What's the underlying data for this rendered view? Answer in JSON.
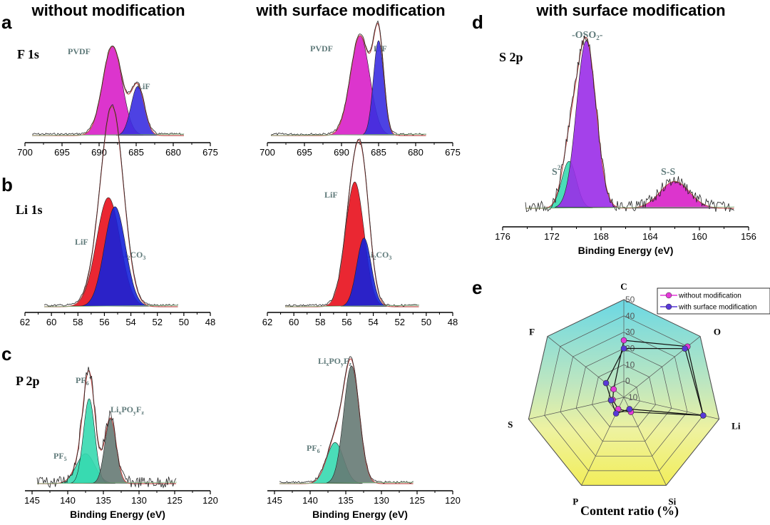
{
  "headers": {
    "left": "without modification",
    "middle": "with surface modification",
    "right": "with surface modification"
  },
  "panel_labels": {
    "a": "a",
    "b": "b",
    "c": "c",
    "d": "d",
    "e": "e"
  },
  "element_labels": {
    "f1s": "F 1s",
    "li1s": "Li 1s",
    "p2p": "P 2p",
    "s2p": "S 2p"
  },
  "colors": {
    "magenta": "#d81fc8",
    "blue": "#3a2ee0",
    "red": "#e8101c",
    "darkblue": "#1622d8",
    "teal": "#36d9b0",
    "gray": "#667a74",
    "purple": "#9a2ce8",
    "envelope": "#c0504d"
  },
  "chart_data": [
    {
      "id": "a-left",
      "type": "line",
      "title": "F 1s — without modification",
      "x_ticks": [
        "700",
        "695",
        "690",
        "685",
        "680",
        "675"
      ],
      "xlim": [
        700,
        675
      ],
      "peaks": [
        {
          "label": "PVDF",
          "center": 688.2,
          "sigma": 1.3,
          "height": 1.0,
          "color": "magenta"
        },
        {
          "label": "LiF",
          "center": 684.8,
          "sigma": 0.9,
          "height": 0.55,
          "color": "blue"
        }
      ],
      "xlabel": ""
    },
    {
      "id": "a-right",
      "type": "line",
      "title": "F 1s — with surface modification",
      "x_ticks": [
        "700",
        "695",
        "690",
        "685",
        "680",
        "675"
      ],
      "xlim": [
        700,
        675
      ],
      "peaks": [
        {
          "label": "PVDF",
          "center": 687.5,
          "sigma": 1.3,
          "height": 1.0,
          "color": "magenta"
        },
        {
          "label": "LiF",
          "center": 685.0,
          "sigma": 0.7,
          "height": 0.95,
          "color": "blue"
        }
      ],
      "xlabel": ""
    },
    {
      "id": "b-left",
      "type": "line",
      "title": "Li 1s — without modification",
      "x_ticks": [
        "62",
        "60",
        "58",
        "56",
        "54",
        "52",
        "50",
        "48"
      ],
      "xlim": [
        62,
        48
      ],
      "peaks": [
        {
          "label": "LiF",
          "center": 55.7,
          "sigma": 0.9,
          "height": 0.6,
          "color": "red"
        },
        {
          "label": "Li2CO3",
          "center": 55.2,
          "sigma": 0.8,
          "height": 0.55,
          "color": "darkblue"
        }
      ],
      "xlabel": ""
    },
    {
      "id": "b-right",
      "type": "line",
      "title": "Li 1s — with surface modification",
      "x_ticks": [
        "62",
        "60",
        "58",
        "56",
        "54",
        "52",
        "50",
        "48"
      ],
      "xlim": [
        62,
        48
      ],
      "peaks": [
        {
          "label": "LiF",
          "center": 55.4,
          "sigma": 0.7,
          "height": 1.0,
          "color": "red"
        },
        {
          "label": "Li2CO3",
          "center": 54.7,
          "sigma": 0.55,
          "height": 0.55,
          "color": "darkblue"
        }
      ],
      "xlabel": ""
    },
    {
      "id": "c-left",
      "type": "line",
      "title": "P 2p — without modification",
      "x_ticks": [
        "145",
        "140",
        "135",
        "130",
        "125",
        "120"
      ],
      "xlim": [
        146,
        120
      ],
      "peaks": [
        {
          "label": "PF5",
          "center": 137.5,
          "sigma": 1.3,
          "height": 0.3,
          "color": "teal"
        },
        {
          "label": "PF6-",
          "center": 137.0,
          "sigma": 0.8,
          "height": 0.85,
          "color": "teal"
        },
        {
          "label": "LixPOyFz",
          "center": 134.0,
          "sigma": 0.8,
          "height": 0.65,
          "color": "gray"
        }
      ],
      "xlabel": "Binding Energy (eV)"
    },
    {
      "id": "c-right",
      "type": "line",
      "title": "P 2p — with surface modification",
      "x_ticks": [
        "145",
        "140",
        "135",
        "130",
        "125",
        "120"
      ],
      "xlim": [
        146,
        120
      ],
      "peaks": [
        {
          "label": "PF6-",
          "center": 136.5,
          "sigma": 1.2,
          "height": 0.35,
          "color": "teal"
        },
        {
          "label": "LixPOyFz",
          "center": 134.2,
          "sigma": 1.1,
          "height": 1.0,
          "color": "gray"
        }
      ],
      "xlabel": "Binding Energy (eV)"
    },
    {
      "id": "d",
      "type": "line",
      "title": "S 2p — with surface modification",
      "x_ticks": [
        "176",
        "172",
        "168",
        "164",
        "160",
        "156"
      ],
      "xlim": [
        176,
        156
      ],
      "peaks": [
        {
          "label": "S2-",
          "center": 170.6,
          "sigma": 0.6,
          "height": 0.28,
          "color": "teal"
        },
        {
          "label": "-OSO2-",
          "center": 169.2,
          "sigma": 0.8,
          "height": 1.0,
          "color": "purple"
        },
        {
          "label": "S-S",
          "center": 162.0,
          "sigma": 1.2,
          "height": 0.16,
          "color": "magenta"
        }
      ],
      "xlabel": "Binding Energy (eV)"
    },
    {
      "id": "e",
      "type": "radar",
      "title": "Content ratio (%)",
      "axes": [
        "C",
        "O",
        "Li",
        "Si",
        "P",
        "S",
        "F"
      ],
      "r_ticks": [
        "-10",
        "0",
        "10",
        "20",
        "30",
        "40",
        "50"
      ],
      "rlim": [
        -10,
        50
      ],
      "series": [
        {
          "name": "without modification",
          "color": "#e43ad8",
          "values": [
            25,
            40,
            40,
            0,
            -2,
            -3,
            -2
          ]
        },
        {
          "name": "with surface modification",
          "color": "#5838d8",
          "values": [
            20,
            38,
            40,
            -2,
            1,
            -2,
            4
          ]
        }
      ],
      "legend": "top-right"
    }
  ]
}
